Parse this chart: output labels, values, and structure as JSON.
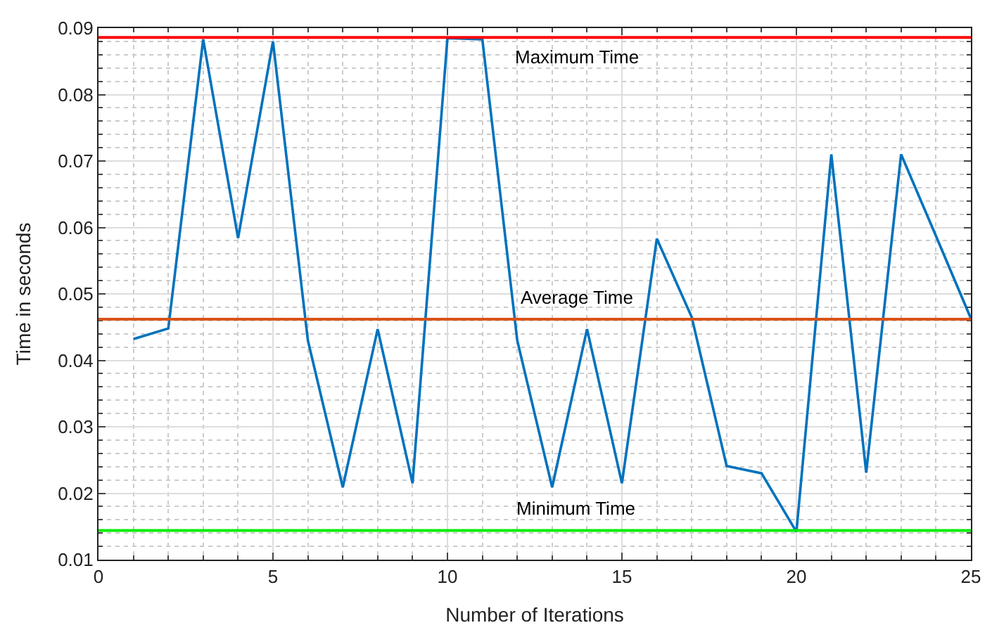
{
  "chart_data": {
    "type": "line",
    "xlabel": "Number of Iterations",
    "ylabel": "Time in seconds",
    "x": [
      1,
      2,
      3,
      4,
      5,
      6,
      7,
      8,
      9,
      10,
      11,
      12,
      13,
      14,
      15,
      16,
      17,
      18,
      19,
      20,
      21,
      22,
      23,
      24,
      25
    ],
    "series": [
      {
        "color": "#0072bd",
        "values": [
          0.0432,
          0.0448,
          0.0883,
          0.0584,
          0.088,
          0.043,
          0.0209,
          0.0447,
          0.0215,
          0.0885,
          0.0883,
          0.043,
          0.0209,
          0.0447,
          0.0215,
          0.0583,
          0.0465,
          0.0241,
          0.023,
          0.0142,
          0.071,
          0.0231,
          0.071,
          0.0587,
          0.0463
        ]
      }
    ],
    "ref_lines": [
      {
        "axis": "y",
        "value": 0.0886,
        "label": "Maximum Time",
        "color": "#ff0000"
      },
      {
        "axis": "y",
        "value": 0.0462,
        "label": "Average Time",
        "color": "#d95319"
      },
      {
        "axis": "y",
        "value": 0.0144,
        "label": "Minimum Time",
        "color": "#00ee00"
      }
    ],
    "xlim": [
      0,
      25
    ],
    "xticks": [
      0,
      5,
      10,
      15,
      20,
      25
    ],
    "ylim": [
      0.01,
      0.09
    ],
    "yticks": [
      0.01,
      0.02,
      0.03,
      0.04,
      0.05,
      0.06,
      0.07,
      0.08,
      0.09
    ],
    "grid": true,
    "line_style": "solid"
  }
}
